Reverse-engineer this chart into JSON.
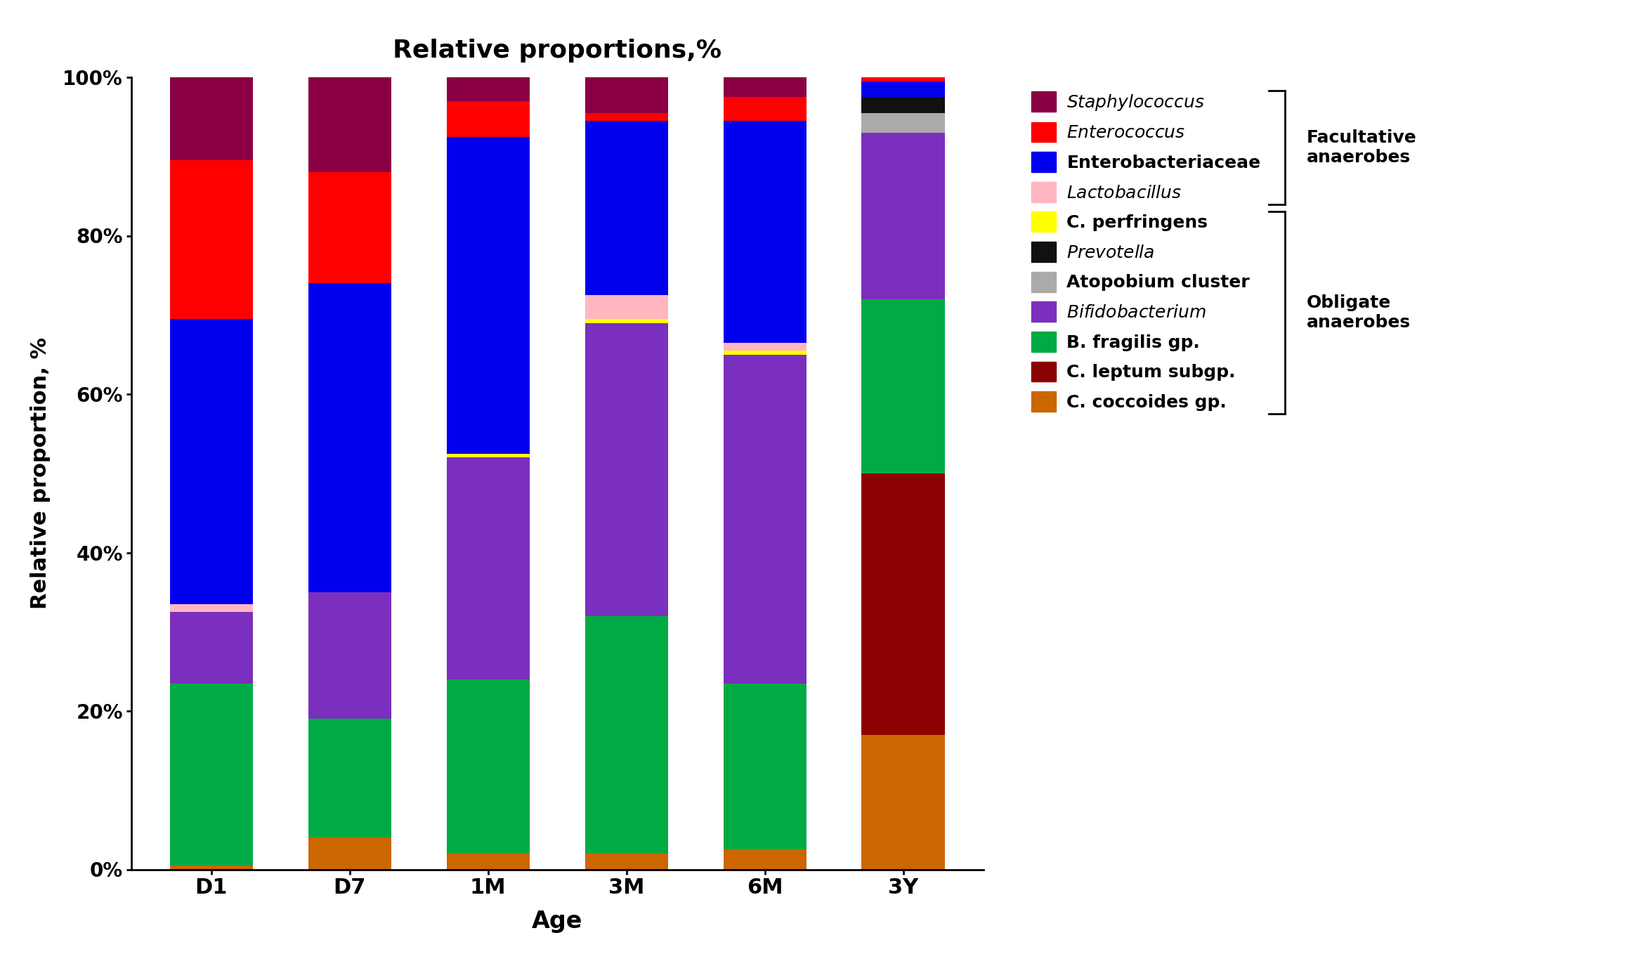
{
  "categories": [
    "D1",
    "D7",
    "1M",
    "3M",
    "6M",
    "3Y"
  ],
  "title": "Relative proportions,%",
  "xlabel": "Age",
  "ylabel": "Relative proportion, %",
  "series": {
    "C. coccoides gp.": {
      "color": "#CC6600",
      "values": [
        0.5,
        4.0,
        2.0,
        2.0,
        2.5,
        17.0
      ]
    },
    "C. leptum subgp.": {
      "color": "#8B0000",
      "values": [
        0.0,
        0.0,
        0.0,
        0.0,
        0.0,
        33.0
      ]
    },
    "B. fragilis gp.": {
      "color": "#00AA44",
      "values": [
        23.0,
        15.0,
        22.0,
        30.0,
        21.0,
        22.0
      ]
    },
    "Bifidobacterium": {
      "color": "#7B2FBE",
      "values": [
        9.0,
        16.0,
        28.0,
        37.0,
        41.5,
        21.0
      ]
    },
    "Atopobium cluster": {
      "color": "#AAAAAA",
      "values": [
        0.0,
        0.0,
        0.0,
        0.0,
        0.0,
        2.5
      ]
    },
    "Prevotella": {
      "color": "#111111",
      "values": [
        0.0,
        0.0,
        0.0,
        0.0,
        0.0,
        2.0
      ]
    },
    "C. perfringens": {
      "color": "#FFFF00",
      "values": [
        0.0,
        0.0,
        0.5,
        0.5,
        0.5,
        0.0
      ]
    },
    "Lactobacillus": {
      "color": "#FFB6C1",
      "values": [
        1.0,
        0.0,
        0.0,
        3.0,
        1.0,
        0.0
      ]
    },
    "Enterobacteriaceae": {
      "color": "#0000EE",
      "values": [
        36.0,
        39.0,
        40.0,
        22.0,
        28.0,
        2.0
      ]
    },
    "Enterococcus": {
      "color": "#FF0000",
      "values": [
        20.0,
        14.0,
        4.5,
        1.0,
        3.0,
        0.5
      ]
    },
    "Staphylococcus": {
      "color": "#8B0045",
      "values": [
        10.5,
        12.0,
        3.0,
        4.5,
        2.5,
        0.0
      ]
    }
  },
  "stack_order": [
    "C. coccoides gp.",
    "C. leptum subgp.",
    "B. fragilis gp.",
    "Bifidobacterium",
    "Atopobium cluster",
    "Prevotella",
    "C. perfringens",
    "Lactobacillus",
    "Enterobacteriaceae",
    "Enterococcus",
    "Staphylococcus"
  ],
  "legend_order": [
    "Staphylococcus",
    "Enterococcus",
    "Enterobacteriaceae",
    "Lactobacillus",
    "C. perfringens",
    "Prevotella",
    "Atopobium cluster",
    "Bifidobacterium",
    "B. fragilis gp.",
    "C. leptum subgp.",
    "C. coccoides gp."
  ],
  "italic_names": [
    "Staphylococcus",
    "Enterococcus",
    "Lactobacillus",
    "Prevotella",
    "Bifidobacterium"
  ],
  "facultative_label": "Facultative\nanaerobes",
  "obligate_label": "Obligate\nanaerobes",
  "background_color": "#FFFFFF",
  "bar_width": 0.6,
  "figsize": [
    23.33,
    13.75
  ],
  "dpi": 100
}
